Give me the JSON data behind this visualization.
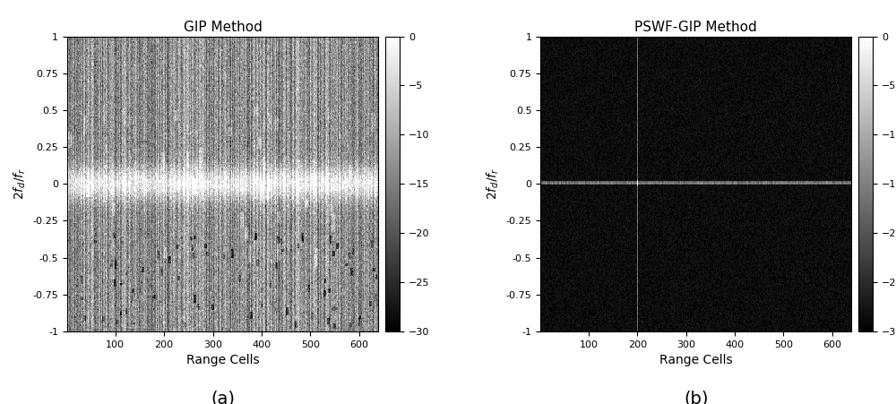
{
  "title_left": "GIP Method",
  "title_right": "PSWF-GIP Method",
  "xlabel": "Range Cells",
  "ylabel_latex": "$2f_d/f_r$",
  "clim_min": -30,
  "clim_max": 0,
  "colorbar_ticks": [
    0,
    -5,
    -10,
    -15,
    -20,
    -25,
    -30
  ],
  "n_range": 640,
  "n_doppler": 256,
  "label_a": "(a)",
  "label_b": "(b)",
  "xticks": [
    100,
    200,
    300,
    400,
    500,
    600
  ],
  "yticks": [
    -1,
    -0.75,
    -0.5,
    -0.25,
    0,
    0.25,
    0.5,
    0.75,
    1
  ],
  "ytick_labels": [
    "-1",
    "-0.75",
    "-0.5",
    "-0.25",
    "0",
    "0.25",
    "0.5",
    "0.75",
    "1"
  ],
  "target_range_cell": 200,
  "seed": 42,
  "figsize": [
    10.0,
    4.51
  ],
  "dpi": 100
}
